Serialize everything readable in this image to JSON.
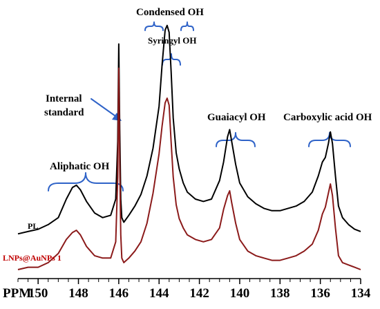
{
  "chart_data": {
    "type": "line",
    "title": "",
    "xlabel": "PPM",
    "ylabel": "",
    "xlim": [
      151,
      134
    ],
    "reversed_x": true,
    "grid": false,
    "x_ticks": [
      150,
      148,
      146,
      144,
      142,
      140,
      138,
      136,
      134
    ],
    "series": [
      {
        "name": "PL",
        "color": "#000000",
        "label_color": "#000000",
        "x": [
          151.0,
          150.5,
          150.0,
          149.5,
          149.0,
          148.6,
          148.3,
          148.1,
          147.9,
          147.6,
          147.2,
          146.8,
          146.4,
          146.15,
          146.05,
          146.0,
          145.95,
          145.9,
          145.85,
          145.75,
          145.5,
          145.2,
          144.9,
          144.6,
          144.3,
          144.0,
          143.85,
          143.7,
          143.6,
          143.5,
          143.4,
          143.3,
          143.15,
          143.0,
          142.8,
          142.6,
          142.2,
          141.8,
          141.4,
          141.0,
          140.8,
          140.6,
          140.5,
          140.4,
          140.2,
          140.0,
          139.6,
          139.2,
          138.8,
          138.4,
          138.0,
          137.6,
          137.2,
          136.8,
          136.4,
          136.1,
          135.9,
          135.75,
          135.6,
          135.5,
          135.4,
          135.25,
          135.1,
          134.9,
          134.6,
          134.3,
          134.0
        ],
        "y": [
          0.05,
          0.06,
          0.07,
          0.09,
          0.12,
          0.2,
          0.25,
          0.26,
          0.24,
          0.19,
          0.14,
          0.12,
          0.13,
          0.2,
          0.45,
          0.87,
          0.5,
          0.2,
          0.12,
          0.1,
          0.13,
          0.17,
          0.22,
          0.3,
          0.42,
          0.6,
          0.78,
          0.93,
          0.95,
          0.92,
          0.75,
          0.55,
          0.4,
          0.33,
          0.27,
          0.23,
          0.2,
          0.19,
          0.2,
          0.28,
          0.36,
          0.47,
          0.5,
          0.45,
          0.35,
          0.27,
          0.21,
          0.18,
          0.16,
          0.15,
          0.15,
          0.16,
          0.17,
          0.19,
          0.23,
          0.3,
          0.36,
          0.38,
          0.44,
          0.49,
          0.44,
          0.3,
          0.17,
          0.12,
          0.09,
          0.07,
          0.06
        ]
      },
      {
        "name": "LNPs@AuNPs 1",
        "color": "#8b1a1a",
        "label_color": "#c00000",
        "x": [
          151.0,
          150.5,
          150.0,
          149.5,
          149.0,
          148.6,
          148.3,
          148.1,
          147.9,
          147.6,
          147.2,
          146.8,
          146.4,
          146.15,
          146.05,
          146.0,
          145.95,
          145.9,
          145.85,
          145.75,
          145.5,
          145.2,
          144.9,
          144.6,
          144.3,
          144.0,
          143.85,
          143.7,
          143.6,
          143.5,
          143.4,
          143.3,
          143.15,
          143.0,
          142.8,
          142.6,
          142.2,
          141.8,
          141.4,
          141.0,
          140.8,
          140.6,
          140.5,
          140.4,
          140.2,
          140.0,
          139.6,
          139.2,
          138.8,
          138.4,
          138.0,
          137.6,
          137.2,
          136.8,
          136.4,
          136.1,
          135.9,
          135.75,
          135.6,
          135.5,
          135.4,
          135.25,
          135.1,
          134.9,
          134.6,
          134.3,
          134.0
        ],
        "y": [
          0.0,
          0.01,
          0.01,
          0.03,
          0.07,
          0.13,
          0.16,
          0.17,
          0.15,
          0.1,
          0.06,
          0.05,
          0.05,
          0.12,
          0.4,
          0.87,
          0.45,
          0.15,
          0.05,
          0.03,
          0.05,
          0.08,
          0.12,
          0.2,
          0.33,
          0.5,
          0.62,
          0.72,
          0.74,
          0.71,
          0.55,
          0.4,
          0.28,
          0.22,
          0.18,
          0.15,
          0.13,
          0.12,
          0.13,
          0.18,
          0.26,
          0.32,
          0.34,
          0.29,
          0.2,
          0.13,
          0.08,
          0.06,
          0.05,
          0.04,
          0.04,
          0.05,
          0.06,
          0.08,
          0.11,
          0.17,
          0.24,
          0.27,
          0.33,
          0.37,
          0.32,
          0.18,
          0.06,
          0.03,
          0.02,
          0.01,
          0.0
        ]
      }
    ],
    "annotations": {
      "condensed": "Condensed OH",
      "syringyl": "Syringyl OH",
      "internal_line1": "Internal",
      "internal_line2": "standard",
      "guaiacyl": "Guaiacyl OH",
      "carboxylic": "Carboxylic acid OH",
      "aliphatic": "Aliphatic OH"
    },
    "brace_color": "#2f63c8"
  }
}
